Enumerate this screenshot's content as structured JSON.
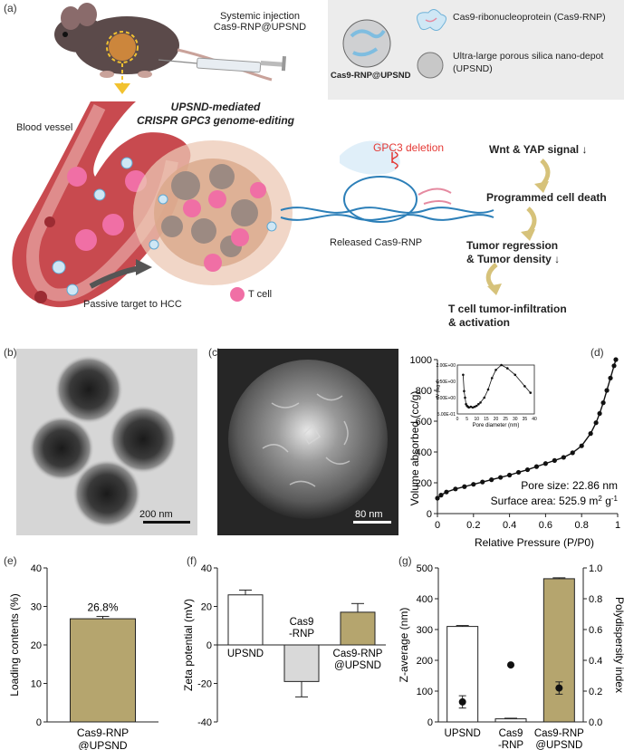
{
  "panel_a": {
    "label": "(a)",
    "injection_line1": "Systemic injection",
    "injection_line2": "Cas9-RNP@UPSND",
    "legend": {
      "nanoparticle_label": "Cas9-RNP@UPSND",
      "rnp_label": "Cas9-ribonucleoprotein (Cas9-RNP)",
      "silica_label_line1": "Ultra-large porous silica nano-depot",
      "silica_label_line2": "(UPSND)"
    },
    "blood_vessel": "Blood vessel",
    "title_line1": "UPSND-mediated",
    "title_line2": "CRISPR GPC3 genome-editing",
    "gpc3_deletion": "GPC3 deletion",
    "released": "Released Cas9-RNP",
    "t_cell": "T cell",
    "passive_target": "Passive target to HCC",
    "flow": {
      "step1": "Wnt & YAP signal ↓",
      "step2": "Programmed cell death",
      "step3_line1": "Tumor regression",
      "step3_line2": "& Tumor density ↓",
      "step4_line1": "T cell tumor-infiltration",
      "step4_line2": "& activation"
    },
    "colors": {
      "vessel": "#c84a4f",
      "tcell": "#f06fa5",
      "arrow": "#d6c27a",
      "deletion": "#e53935"
    }
  },
  "panel_b": {
    "label": "(b)",
    "scale_bar": "200 nm"
  },
  "panel_c": {
    "label": "(c)",
    "scale_bar": "80 nm"
  },
  "panel_d": {
    "label": "(d)",
    "pore_size": "Pore size: 22.86 nm",
    "surface_area_prefix": "Surface area: 525.9 m",
    "surface_area_sup": "2",
    "surface_area_unit": " g",
    "surface_area_sup2": "-1",
    "chart_data": {
      "type": "line",
      "xlabel": "Relative Pressure (P/P0)",
      "ylabel": "Volume absorbed (cc/g)",
      "xlim": [
        0,
        1
      ],
      "ylim": [
        0,
        1000
      ],
      "xticks": [
        "0",
        "0.2",
        "0.4",
        "0.6",
        "0.8",
        "1"
      ],
      "yticks": [
        "0",
        "200",
        "400",
        "600",
        "800",
        "1000"
      ],
      "series": [
        {
          "x": [
            0.0,
            0.02,
            0.05,
            0.1,
            0.15,
            0.2,
            0.25,
            0.3,
            0.35,
            0.4,
            0.45,
            0.5,
            0.55,
            0.6,
            0.65,
            0.7,
            0.75,
            0.8,
            0.85,
            0.88,
            0.9,
            0.92,
            0.94,
            0.96,
            0.98,
            0.99
          ],
          "y": [
            100,
            120,
            140,
            160,
            175,
            190,
            205,
            220,
            235,
            250,
            268,
            285,
            305,
            325,
            345,
            365,
            395,
            440,
            520,
            590,
            650,
            720,
            800,
            880,
            960,
            1000
          ]
        }
      ],
      "inset": {
        "xlabel": "Pore diameter (nm)",
        "ylabel": "dV (log d)",
        "xticks": [
          "0",
          "5",
          "10",
          "15",
          "20",
          "25",
          "30",
          "35",
          "40"
        ],
        "yticks": [
          "5.00E-01",
          "1.00E+00",
          "1.50E+00",
          "2.00E+00"
        ],
        "xlim": [
          0,
          40
        ],
        "ylim": [
          0.5,
          2.0
        ],
        "x": [
          3,
          3.5,
          4,
          4.5,
          5,
          5.5,
          6,
          7,
          8,
          9,
          10,
          11,
          12,
          14,
          16,
          18,
          20,
          22.86,
          26,
          30,
          35,
          38
        ],
        "y": [
          1.7,
          1.2,
          1.0,
          0.8,
          0.75,
          0.72,
          0.7,
          0.72,
          0.7,
          0.72,
          0.75,
          0.8,
          0.85,
          1.0,
          1.25,
          1.6,
          1.85,
          2.0,
          1.9,
          1.7,
          1.35,
          1.15
        ]
      }
    }
  },
  "panel_e": {
    "label": "(e)",
    "value_label": "26.8%",
    "chart_data": {
      "type": "bar",
      "ylabel": "Loading contents (%)",
      "ylim": [
        0,
        40
      ],
      "yticks": [
        "0",
        "10",
        "20",
        "30",
        "40"
      ],
      "categories": [
        "Cas9-RNP @UPSND"
      ],
      "values": [
        26.8
      ],
      "error": [
        0.6
      ],
      "colors": [
        "#b5a56e"
      ]
    }
  },
  "panel_f": {
    "label": "(f)",
    "chart_data": {
      "type": "bar",
      "ylabel": "Zeta potential (mV)",
      "ylim": [
        -40,
        40
      ],
      "yticks": [
        "-40",
        "-20",
        "0",
        "20",
        "40"
      ],
      "categories": [
        "UPSND",
        "Cas9 -RNP",
        "Cas9-RNP @UPSND"
      ],
      "values": [
        26,
        -19,
        17
      ],
      "error": [
        2.5,
        8,
        4.5
      ],
      "colors": [
        "#ffffff",
        "#d9d9d9",
        "#b5a56e"
      ]
    }
  },
  "panel_g": {
    "label": "(g)",
    "chart_data": {
      "type": "bar",
      "ylabel": "Z-average (nm)",
      "y2label": "Polydispersity index",
      "ylim": [
        0,
        500
      ],
      "y2lim": [
        0,
        1.0
      ],
      "yticks": [
        "0",
        "100",
        "200",
        "300",
        "400",
        "500"
      ],
      "y2ticks": [
        "0.0",
        "0.2",
        "0.4",
        "0.6",
        "0.8",
        "1.0"
      ],
      "categories": [
        "UPSND",
        "Cas9 -RNP",
        "Cas9-RNP @UPSND"
      ],
      "values": [
        310,
        10,
        465
      ],
      "error": [
        3,
        2,
        3
      ],
      "pdi": [
        0.13,
        0.37,
        0.22
      ],
      "pdi_error": [
        0.04,
        0,
        0.04
      ],
      "colors": [
        "#ffffff",
        "#ffffff",
        "#b5a56e"
      ]
    }
  }
}
